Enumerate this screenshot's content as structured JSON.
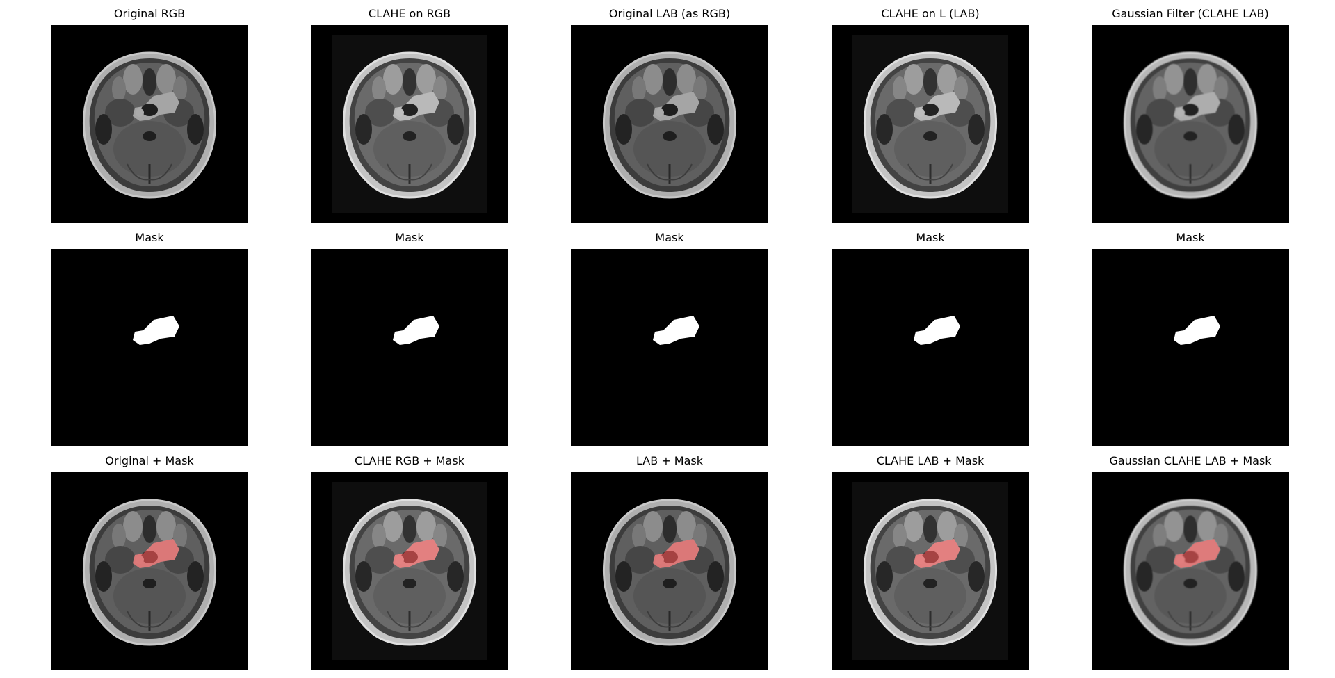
{
  "figure": {
    "rows": [
      {
        "kind": "mri",
        "panels": [
          {
            "title": "Original RGB",
            "variant": "original"
          },
          {
            "title": "CLAHE on RGB",
            "variant": "clahe"
          },
          {
            "title": "Original LAB (as RGB)",
            "variant": "original"
          },
          {
            "title": "CLAHE on L (LAB)",
            "variant": "clahe"
          },
          {
            "title": "Gaussian Filter (CLAHE LAB)",
            "variant": "gaussian"
          }
        ]
      },
      {
        "kind": "mask",
        "panels": [
          {
            "title": "Mask",
            "variant": "mask"
          },
          {
            "title": "Mask",
            "variant": "mask"
          },
          {
            "title": "Mask",
            "variant": "mask"
          },
          {
            "title": "Mask",
            "variant": "mask"
          },
          {
            "title": "Mask",
            "variant": "mask"
          }
        ]
      },
      {
        "kind": "overlay",
        "panels": [
          {
            "title": "Original + Mask",
            "variant": "original"
          },
          {
            "title": "CLAHE RGB + Mask",
            "variant": "clahe"
          },
          {
            "title": "LAB + Mask",
            "variant": "original"
          },
          {
            "title": "CLAHE LAB + Mask",
            "variant": "clahe"
          },
          {
            "title": "Gaussian CLAHE LAB + Mask",
            "variant": "gaussian"
          }
        ]
      }
    ],
    "colors": {
      "background": "#000000",
      "mask": "#ffffff",
      "overlay": "#ff5a5a"
    }
  }
}
